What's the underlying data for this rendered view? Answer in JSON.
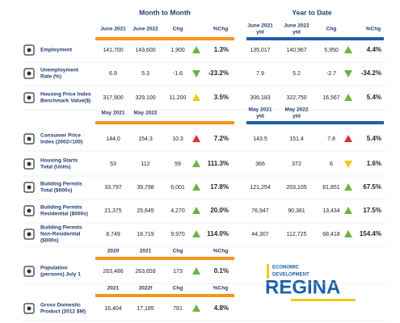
{
  "sections": [
    "Month to Month",
    "Year to Date"
  ],
  "groups": [
    {
      "headers": [
        [
          "June 2021"
        ],
        [
          "June 2022"
        ],
        [
          "Chg"
        ],
        [
          "%Chg"
        ]
      ],
      "ytd_headers": [
        [
          "June 2021",
          "ytd"
        ],
        [
          "June 2022",
          "ytd"
        ],
        [
          "Chg"
        ],
        [
          "%Chg"
        ]
      ],
      "rows": [
        {
          "label": [
            "Employment"
          ],
          "month": {
            "values": [
              "141,700",
              "143,600",
              "1,900"
            ],
            "arrow": "up",
            "arrow_color": "#6db33f",
            "pct": "1.3%"
          },
          "ytd": {
            "values": [
              "135,017",
              "140,967",
              "5,950"
            ],
            "arrow": "up",
            "arrow_color": "#6db33f",
            "pct": "4.4%"
          }
        },
        {
          "label": [
            "Unemployment",
            "Rate (%)"
          ],
          "month": {
            "values": [
              "6.9",
              "5.3",
              "-1.6"
            ],
            "arrow": "down",
            "arrow_color": "#6db33f",
            "pct": "-23.2%"
          },
          "ytd": {
            "values": [
              "7.9",
              "5.2",
              "-2.7"
            ],
            "arrow": "down",
            "arrow_color": "#6db33f",
            "pct": "-34.2%"
          }
        },
        {
          "label": [
            "Housing Price Index",
            "Benchmark Value($)"
          ],
          "month": {
            "values": [
              "317,900",
              "329,100",
              "11,200"
            ],
            "arrow": "up",
            "arrow_color": "#f5c518",
            "pct": "3.5%"
          },
          "ytd": {
            "values": [
              "306,183",
              "322,750",
              "16,567"
            ],
            "arrow": "up",
            "arrow_color": "#6db33f",
            "pct": "5.4%"
          }
        }
      ]
    },
    {
      "headers": [
        [
          "May 2021"
        ],
        [
          "May 2022"
        ]
      ],
      "ytd_headers": [
        [
          "May 2021",
          "ytd"
        ],
        [
          "May 2022",
          "ytd"
        ]
      ],
      "rows": [
        {
          "label": [
            "Consumer Price",
            "Index (2002=100)"
          ],
          "month": {
            "values": [
              "144.0",
              "154.3",
              "10.3"
            ],
            "arrow": "up",
            "arrow_color": "#d9342b",
            "pct": "7.2%"
          },
          "ytd": {
            "values": [
              "143.5",
              "151.4",
              "7.8"
            ],
            "arrow": "up",
            "arrow_color": "#d9342b",
            "pct": "5.4%"
          }
        },
        {
          "label": [
            "Housing Starts",
            "Total (Units)"
          ],
          "month": {
            "values": [
              "53",
              "112",
              "59"
            ],
            "arrow": "up",
            "arrow_color": "#6db33f",
            "pct": "111.3%"
          },
          "ytd": {
            "values": [
              "366",
              "372",
              "6"
            ],
            "arrow": "down",
            "arrow_color": "#f5c518",
            "pct": "1.6%"
          }
        },
        {
          "label": [
            "Building Permits",
            "Total ($000s)"
          ],
          "month": {
            "values": [
              "33,797",
              "39,798",
              "6,001"
            ],
            "arrow": "up",
            "arrow_color": "#6db33f",
            "pct": "17.8%"
          },
          "ytd": {
            "values": [
              "121,254",
              "203,105",
              "81,851"
            ],
            "arrow": "up",
            "arrow_color": "#6db33f",
            "pct": "67.5%"
          }
        },
        {
          "label": [
            "Building Permits",
            "Residential ($000s)"
          ],
          "month": {
            "values": [
              "21,375",
              "25,645",
              "4,270"
            ],
            "arrow": "up",
            "arrow_color": "#6db33f",
            "pct": "20.0%"
          },
          "ytd": {
            "values": [
              "76,947",
              "90,381",
              "13,434"
            ],
            "arrow": "up",
            "arrow_color": "#6db33f",
            "pct": "17.5%"
          }
        },
        {
          "label": [
            "Building Permits",
            "Non-Residential",
            "($000s)"
          ],
          "month": {
            "values": [
              "8,749",
              "18,719",
              "9,970"
            ],
            "arrow": "up",
            "arrow_color": "#6db33f",
            "pct": "114.0%"
          },
          "ytd": {
            "values": [
              "44,307",
              "112,725",
              "68,418"
            ],
            "arrow": "up",
            "arrow_color": "#6db33f",
            "pct": "154.4%"
          }
        }
      ]
    },
    {
      "headers": [
        [
          "2020"
        ],
        [
          "2021"
        ],
        [
          "Chg"
        ],
        [
          "%Chg"
        ]
      ],
      "rows": [
        {
          "label": [
            "Population",
            "(persons) July 1"
          ],
          "month": {
            "values": [
              "263,486",
              "263,659",
              "173"
            ],
            "arrow": "up",
            "arrow_color": "#6db33f",
            "pct": "0.1%"
          }
        }
      ]
    },
    {
      "headers": [
        [
          "2021"
        ],
        [
          "2022f"
        ],
        [
          "Chg"
        ],
        [
          "%Chg"
        ]
      ],
      "rows": [
        {
          "label": [
            "Gross Domestic",
            "Product (2012 $M)"
          ],
          "month": {
            "values": [
              "16,404",
              "17,185",
              "781"
            ],
            "arrow": "up",
            "arrow_color": "#6db33f",
            "pct": "4.8%"
          }
        }
      ]
    }
  ],
  "logo": {
    "line1": "ECONOMIC",
    "line2": "DEVELOPMENT",
    "name": "REGINA"
  }
}
